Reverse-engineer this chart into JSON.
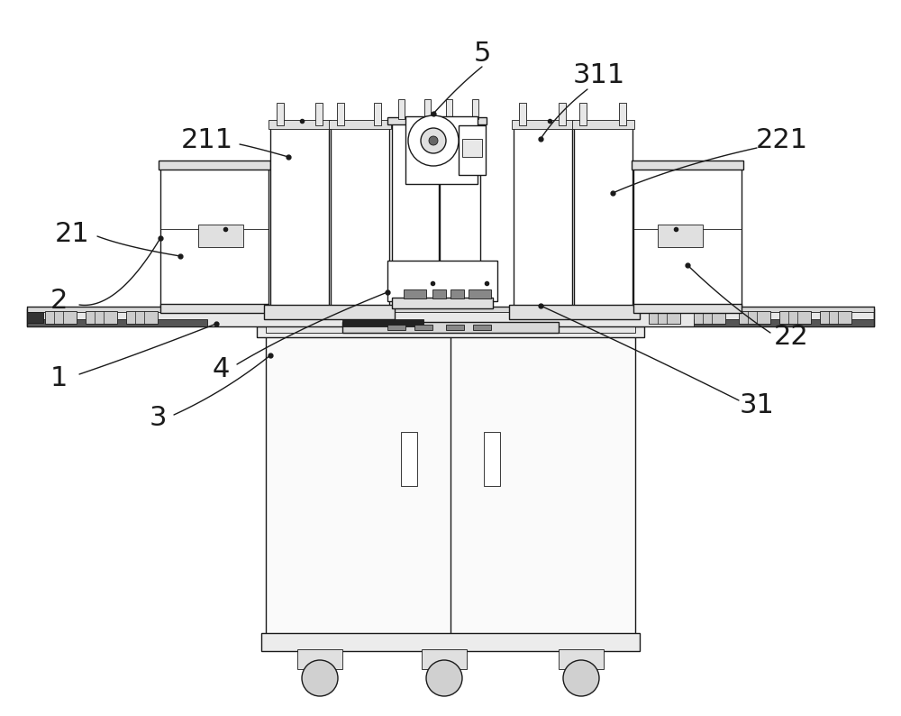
{
  "bg_color": "#ffffff",
  "lc": "#1a1a1a",
  "fig_width": 10.0,
  "fig_height": 7.94,
  "lw_main": 1.0,
  "lw_thin": 0.6,
  "lw_thick": 1.5
}
